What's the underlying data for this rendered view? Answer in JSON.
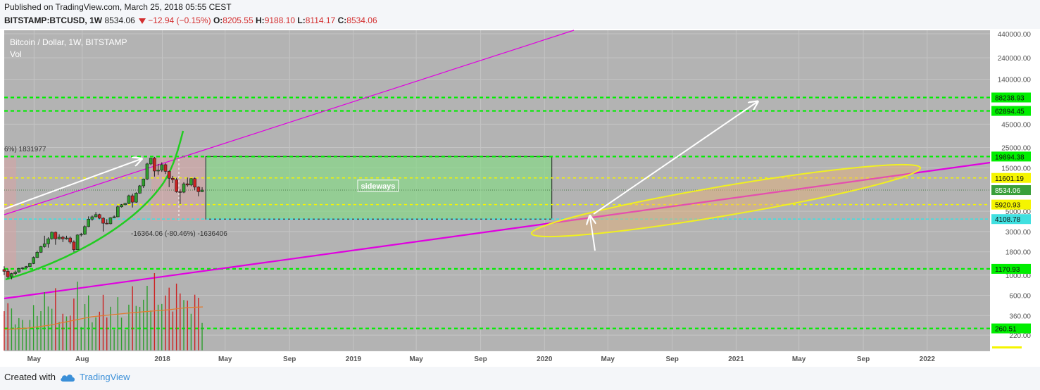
{
  "header": {
    "published": "Published on TradingView.com, March 25, 2018 05:55 CEST",
    "symbol": "BITSTAMP:BTCUSD, 1W",
    "last": "8534.06",
    "change": "−12.94 (−0.15%)",
    "o_label": "O:",
    "o_value": "8205.55",
    "h_label": "H:",
    "h_value": "9188.10",
    "l_label": "L:",
    "l_value": "8114.17",
    "c_label": "C:",
    "c_value": "8534.06"
  },
  "overlay": {
    "title": "Bitcoin / Dollar, 1W, BITSTAMP",
    "vol": "Vol"
  },
  "footer": {
    "created_with": "Created with",
    "brand": "TradingView"
  },
  "colors": {
    "background": "#b3b3b3",
    "green_dash": "#00ee00",
    "yellow_dash": "#f5f500",
    "cyan_dash": "#40e0e0",
    "magenta": "#e000e0",
    "curve": "#22cc22",
    "candle_up": "#2e9e2e",
    "candle_down": "#cc2222"
  },
  "chart_data": {
    "type": "candlestick",
    "title": "Bitcoin / Dollar, 1W, BITSTAMP",
    "y_scale": "log",
    "ylim": [
      160,
      440000
    ],
    "y_ticks": [
      440000,
      240000,
      140000,
      45000,
      25000,
      15000,
      5000,
      3000,
      1800,
      1000,
      600,
      360,
      220
    ],
    "y_tick_labels": [
      "440000.00",
      "240000.00",
      "140000.00",
      "45000.00",
      "25000.00",
      "15000.00",
      "5000.00",
      "3000.00",
      "1800.00",
      "1000.00",
      "600.00",
      "360.00",
      "220.00"
    ],
    "x_ticks": [
      "2017-05-01",
      "2017-08-01",
      "2018-01-01",
      "2018-05-01",
      "2018-09-01",
      "2019-01-01",
      "2019-05-01",
      "2019-09-01",
      "2020-01-01",
      "2020-05-01",
      "2020-09-01",
      "2021-01-01",
      "2021-05-01",
      "2021-09-01",
      "2022-01-01"
    ],
    "x_tick_labels": [
      "May",
      "Aug",
      "2018",
      "May",
      "Sep",
      "2019",
      "May",
      "Sep",
      "2020",
      "May",
      "Sep",
      "2021",
      "May",
      "Sep",
      "2022"
    ],
    "xlim": [
      "2017-03-05",
      "2022-05-01"
    ],
    "horizontal_levels": [
      {
        "value": 88238.93,
        "label": "88238.93",
        "style": "green-dashed"
      },
      {
        "value": 62894.45,
        "label": "62894.45",
        "style": "green-dashed"
      },
      {
        "value": 19894.38,
        "label": "19894.38",
        "style": "green-dashed"
      },
      {
        "value": 11601.19,
        "label": "11601.19",
        "style": "yellow-dashed"
      },
      {
        "value": 8534.06,
        "label": "8534.06",
        "style": "last-price"
      },
      {
        "value": 5920.93,
        "label": "5920.93",
        "style": "yellow-dashed"
      },
      {
        "value": 4108.78,
        "label": "4108.78",
        "style": "cyan-dashed"
      },
      {
        "value": 1170.93,
        "label": "1170.93",
        "style": "green-dashed"
      },
      {
        "value": 260.51,
        "label": "260.51",
        "style": "green-dashed"
      }
    ],
    "annotations": {
      "sideways": "sideways",
      "measure": "-16364.06 (-80.46%) -1636406",
      "left_cut": "6%) 1831977"
    },
    "sideways_box": {
      "x_start": "2018-03-25",
      "x_end": "2020-01-15",
      "y_low": 4108.78,
      "y_high": 19894.38
    },
    "candles": [
      {
        "d": "2017-03-05",
        "o": 1150,
        "h": 1250,
        "l": 1000,
        "c": 1100
      },
      {
        "d": "2017-03-12",
        "o": 1100,
        "h": 1180,
        "l": 920,
        "c": 960
      },
      {
        "d": "2017-03-19",
        "o": 960,
        "h": 1060,
        "l": 900,
        "c": 1040
      },
      {
        "d": "2017-03-26",
        "o": 1040,
        "h": 1120,
        "l": 1000,
        "c": 1080
      },
      {
        "d": "2017-04-02",
        "o": 1080,
        "h": 1200,
        "l": 1060,
        "c": 1180
      },
      {
        "d": "2017-04-09",
        "o": 1180,
        "h": 1220,
        "l": 1140,
        "c": 1200
      },
      {
        "d": "2017-04-16",
        "o": 1200,
        "h": 1260,
        "l": 1180,
        "c": 1240
      },
      {
        "d": "2017-04-23",
        "o": 1240,
        "h": 1360,
        "l": 1220,
        "c": 1340
      },
      {
        "d": "2017-04-30",
        "o": 1340,
        "h": 1600,
        "l": 1320,
        "c": 1560
      },
      {
        "d": "2017-05-07",
        "o": 1560,
        "h": 1850,
        "l": 1540,
        "c": 1780
      },
      {
        "d": "2017-05-14",
        "o": 1780,
        "h": 2100,
        "l": 1750,
        "c": 2050
      },
      {
        "d": "2017-05-21",
        "o": 2050,
        "h": 2700,
        "l": 2000,
        "c": 2200
      },
      {
        "d": "2017-05-28",
        "o": 2200,
        "h": 2600,
        "l": 2000,
        "c": 2500
      },
      {
        "d": "2017-06-04",
        "o": 2500,
        "h": 3000,
        "l": 2450,
        "c": 2950
      },
      {
        "d": "2017-06-11",
        "o": 2950,
        "h": 3000,
        "l": 2150,
        "c": 2500
      },
      {
        "d": "2017-06-18",
        "o": 2500,
        "h": 2800,
        "l": 2450,
        "c": 2600
      },
      {
        "d": "2017-06-25",
        "o": 2600,
        "h": 2700,
        "l": 2300,
        "c": 2500
      },
      {
        "d": "2017-07-02",
        "o": 2500,
        "h": 2700,
        "l": 2450,
        "c": 2550
      },
      {
        "d": "2017-07-09",
        "o": 2550,
        "h": 2650,
        "l": 2200,
        "c": 2300
      },
      {
        "d": "2017-07-16",
        "o": 2300,
        "h": 2400,
        "l": 1800,
        "c": 1900
      },
      {
        "d": "2017-07-23",
        "o": 1900,
        "h": 2800,
        "l": 1900,
        "c": 2750
      },
      {
        "d": "2017-07-30",
        "o": 2750,
        "h": 2900,
        "l": 2650,
        "c": 2800
      },
      {
        "d": "2017-08-06",
        "o": 2800,
        "h": 3500,
        "l": 2750,
        "c": 3400
      },
      {
        "d": "2017-08-13",
        "o": 3400,
        "h": 4400,
        "l": 3350,
        "c": 4100
      },
      {
        "d": "2017-08-20",
        "o": 4100,
        "h": 4500,
        "l": 3950,
        "c": 4350
      },
      {
        "d": "2017-08-27",
        "o": 4350,
        "h": 4900,
        "l": 4300,
        "c": 4600
      },
      {
        "d": "2017-09-03",
        "o": 4600,
        "h": 4700,
        "l": 4100,
        "c": 4200
      },
      {
        "d": "2017-09-10",
        "o": 4200,
        "h": 4300,
        "l": 3000,
        "c": 3700
      },
      {
        "d": "2017-09-17",
        "o": 3700,
        "h": 4100,
        "l": 3600,
        "c": 3650
      },
      {
        "d": "2017-09-24",
        "o": 3650,
        "h": 4300,
        "l": 3600,
        "c": 4250
      },
      {
        "d": "2017-10-01",
        "o": 4250,
        "h": 4500,
        "l": 4200,
        "c": 4350
      },
      {
        "d": "2017-10-08",
        "o": 4350,
        "h": 5800,
        "l": 4300,
        "c": 5600
      },
      {
        "d": "2017-10-15",
        "o": 5600,
        "h": 6000,
        "l": 5500,
        "c": 5900
      },
      {
        "d": "2017-10-22",
        "o": 5900,
        "h": 6200,
        "l": 5800,
        "c": 6100
      },
      {
        "d": "2017-10-29",
        "o": 6100,
        "h": 7600,
        "l": 6000,
        "c": 7400
      },
      {
        "d": "2017-11-05",
        "o": 7400,
        "h": 7800,
        "l": 5500,
        "c": 6300
      },
      {
        "d": "2017-11-12",
        "o": 6300,
        "h": 8100,
        "l": 6200,
        "c": 7900
      },
      {
        "d": "2017-11-19",
        "o": 7900,
        "h": 9700,
        "l": 7800,
        "c": 9500
      },
      {
        "d": "2017-11-26",
        "o": 9500,
        "h": 11400,
        "l": 9000,
        "c": 11300
      },
      {
        "d": "2017-12-03",
        "o": 11300,
        "h": 17000,
        "l": 11000,
        "c": 16500
      },
      {
        "d": "2017-12-10",
        "o": 16500,
        "h": 19300,
        "l": 16000,
        "c": 19100
      },
      {
        "d": "2017-12-17",
        "o": 19100,
        "h": 19700,
        "l": 12000,
        "c": 13800
      },
      {
        "d": "2017-12-24",
        "o": 13800,
        "h": 16500,
        "l": 12500,
        "c": 14100
      },
      {
        "d": "2017-12-31",
        "o": 14100,
        "h": 17200,
        "l": 13500,
        "c": 16200
      },
      {
        "d": "2018-01-07",
        "o": 16200,
        "h": 16800,
        "l": 12800,
        "c": 13700
      },
      {
        "d": "2018-01-14",
        "o": 13700,
        "h": 14000,
        "l": 9200,
        "c": 11500
      },
      {
        "d": "2018-01-21",
        "o": 11500,
        "h": 12200,
        "l": 10200,
        "c": 11100
      },
      {
        "d": "2018-01-28",
        "o": 11100,
        "h": 11600,
        "l": 8000,
        "c": 8200
      },
      {
        "d": "2018-02-04",
        "o": 8200,
        "h": 8700,
        "l": 6000,
        "c": 8100
      },
      {
        "d": "2018-02-11",
        "o": 8100,
        "h": 10400,
        "l": 7900,
        "c": 10000
      },
      {
        "d": "2018-02-18",
        "o": 10000,
        "h": 11700,
        "l": 9300,
        "c": 9700
      },
      {
        "d": "2018-02-25",
        "o": 9700,
        "h": 11500,
        "l": 9400,
        "c": 11400
      },
      {
        "d": "2018-03-04",
        "o": 11400,
        "h": 11700,
        "l": 8500,
        "c": 9200
      },
      {
        "d": "2018-03-11",
        "o": 9200,
        "h": 9400,
        "l": 7300,
        "c": 8200
      },
      {
        "d": "2018-03-18",
        "o": 8200,
        "h": 9190,
        "l": 8110,
        "c": 8534
      }
    ]
  }
}
